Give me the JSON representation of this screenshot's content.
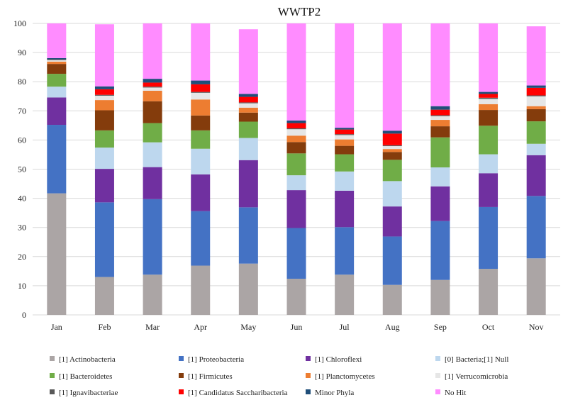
{
  "chart_data": {
    "type": "bar",
    "stacked": true,
    "title": "WWTP2",
    "xlabel": "",
    "ylabel": "",
    "ylim": [
      0,
      100
    ],
    "yticks": [
      0,
      10,
      20,
      30,
      40,
      50,
      60,
      70,
      80,
      90,
      100
    ],
    "grid": "horizontal",
    "legend_position": "bottom",
    "categories": [
      "Jan",
      "Feb",
      "Mar",
      "Apr",
      "May",
      "Jun",
      "Jul",
      "Aug",
      "Sep",
      "Oct",
      "Nov"
    ],
    "series": [
      {
        "name": "[1] Actinobacteria",
        "color": "#aba5a5",
        "values": [
          41.7,
          13.0,
          13.8,
          16.9,
          17.6,
          12.4,
          13.8,
          10.3,
          12.0,
          15.8,
          19.4
        ]
      },
      {
        "name": "[1] Proteobacteria",
        "color": "#4472c4",
        "values": [
          23.5,
          25.6,
          25.9,
          18.7,
          19.3,
          17.4,
          16.3,
          16.6,
          20.2,
          21.2,
          21.4
        ]
      },
      {
        "name": "[1] Chloroflexi",
        "color": "#7030a0",
        "values": [
          9.4,
          11.5,
          11.0,
          12.6,
          16.2,
          13.0,
          12.5,
          10.3,
          11.9,
          11.6,
          14.0
        ]
      },
      {
        "name": "[0] Bacteria;[1] Null",
        "color": "#bdd7ee",
        "values": [
          3.7,
          7.3,
          8.5,
          8.8,
          7.6,
          5.1,
          6.6,
          8.7,
          6.5,
          6.5,
          3.9
        ]
      },
      {
        "name": "[1] Bacteroidetes",
        "color": "#70ad47",
        "values": [
          4.4,
          5.9,
          6.6,
          6.3,
          5.6,
          7.5,
          5.9,
          7.3,
          10.3,
          9.8,
          7.7
        ]
      },
      {
        "name": "[1] Firmicutes",
        "color": "#843c0c",
        "values": [
          3.4,
          6.9,
          7.5,
          5.1,
          3.1,
          3.9,
          2.9,
          2.7,
          3.8,
          5.4,
          4.2
        ]
      },
      {
        "name": "[1] Planctomycetes",
        "color": "#ed7d31",
        "values": [
          0.8,
          3.5,
          3.6,
          5.5,
          1.7,
          2.2,
          2.2,
          1.0,
          2.2,
          2.0,
          1.0
        ]
      },
      {
        "name": "[1] Verrucomicrobia",
        "color": "#e6e6e6",
        "values": [
          0.5,
          1.5,
          1.1,
          2.3,
          1.5,
          2.2,
          1.5,
          1.0,
          1.3,
          1.8,
          3.4
        ]
      },
      {
        "name": "[1] Ignavibacteriae",
        "color": "#595959",
        "values": [
          0.3,
          0.3,
          0.3,
          0.3,
          0.3,
          0.3,
          0.3,
          0.3,
          0.3,
          0.4,
          0.3
        ]
      },
      {
        "name": "[1] Candidatus Saccharibacteria",
        "color": "#ff0000",
        "values": [
          0.0,
          1.9,
          1.4,
          2.6,
          1.9,
          1.8,
          1.6,
          4.0,
          1.9,
          1.3,
          2.6
        ]
      },
      {
        "name": "Minor Phyla",
        "color": "#1f4e79",
        "values": [
          0.4,
          1.0,
          1.3,
          1.3,
          1.0,
          0.9,
          0.6,
          1.0,
          1.2,
          0.7,
          0.8
        ]
      },
      {
        "name": "No Hit",
        "color": "#ff8cff",
        "values": [
          11.9,
          21.3,
          19.0,
          19.6,
          22.2,
          33.3,
          35.8,
          36.8,
          28.4,
          23.5,
          20.3
        ]
      }
    ]
  }
}
